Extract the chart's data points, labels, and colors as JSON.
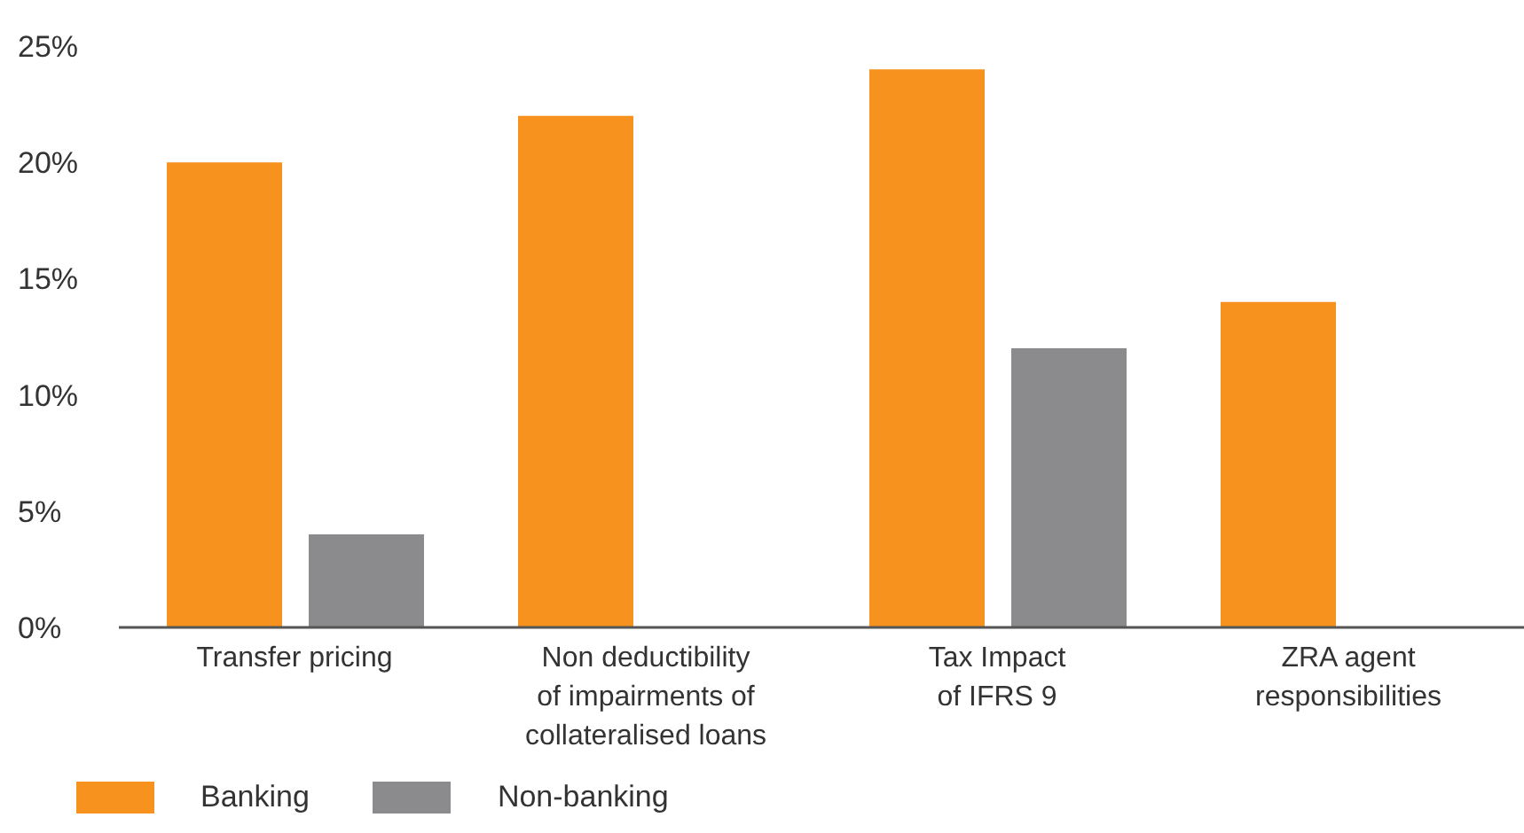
{
  "chart_data": {
    "type": "bar",
    "categories": [
      "Transfer pricing",
      "Non deductibility\nof impairments of\ncollateralised loans",
      "Tax Impact\nof IFRS 9",
      "ZRA agent\nresponsibilities"
    ],
    "series": [
      {
        "name": "Banking",
        "color": "#f7921e",
        "values": [
          20,
          22,
          24,
          14
        ]
      },
      {
        "name": "Non-banking",
        "color": "#8b8b8e",
        "values": [
          4,
          0,
          12,
          0
        ]
      }
    ],
    "ylim": [
      0,
      25
    ],
    "yticks": [
      {
        "value": 0,
        "label": "0%"
      },
      {
        "value": 5,
        "label": "5%"
      },
      {
        "value": 10,
        "label": "10%"
      },
      {
        "value": 15,
        "label": "15%"
      },
      {
        "value": 20,
        "label": "20%"
      },
      {
        "value": 25,
        "label": "25%"
      }
    ],
    "grid": false,
    "legend": "bottom left"
  }
}
